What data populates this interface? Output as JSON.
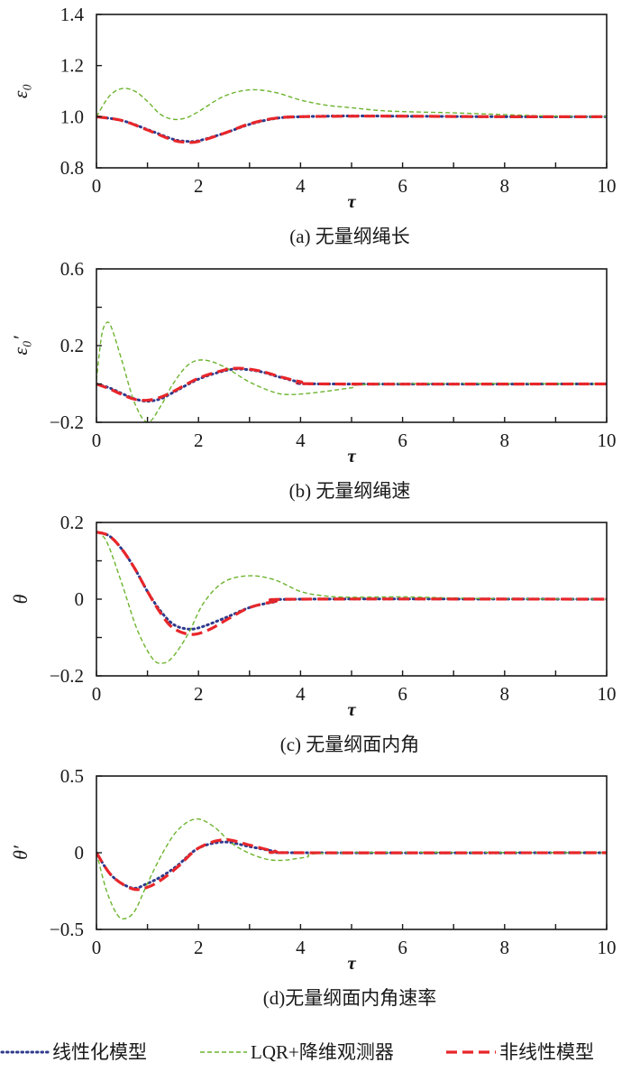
{
  "colors": {
    "linear": "#2e3a8c",
    "lqr": "#6cb42e",
    "nonlinear": "#e8262a",
    "axis": "#1a1a1a"
  },
  "legend": {
    "position": "bottom",
    "items": [
      {
        "key": "linear",
        "label": "线性化模型",
        "style": "dotted"
      },
      {
        "key": "lqr",
        "label": "LQR+降维观测器",
        "style": "dashed-thin"
      },
      {
        "key": "nonlinear",
        "label": "非线性模型",
        "style": "dashed-thick"
      }
    ]
  },
  "chart_data": [
    {
      "type": "line",
      "caption": "(a) 无量纲绳长",
      "xlabel": "τ",
      "ylabel": "ε₀",
      "xlim": [
        0,
        10
      ],
      "ylim": [
        0.8,
        1.4
      ],
      "xticks": [
        0,
        2,
        4,
        6,
        8,
        10
      ],
      "xminor": [
        1,
        3,
        5,
        7,
        9
      ],
      "yticks": [
        0.8,
        1.0,
        1.2,
        1.4
      ],
      "ytick_labels": [
        "0.8",
        "1.0",
        "1.2",
        "1.4"
      ],
      "yminor": [],
      "grid": false,
      "series": [
        {
          "key": "linear",
          "name": "线性化模型",
          "points": [
            [
              0,
              1
            ],
            [
              0.5,
              0.985
            ],
            [
              1,
              0.95
            ],
            [
              1.5,
              0.912
            ],
            [
              1.75,
              0.904
            ],
            [
              2,
              0.906
            ],
            [
              2.5,
              0.935
            ],
            [
              3,
              0.97
            ],
            [
              3.5,
              0.993
            ],
            [
              4,
              1.0
            ],
            [
              5,
              1.003
            ],
            [
              6,
              1.002
            ],
            [
              8,
              1.0
            ],
            [
              10,
              1.0
            ]
          ]
        },
        {
          "key": "lqr",
          "name": "LQR+降维观测器",
          "points": [
            [
              0,
              1
            ],
            [
              0.25,
              1.08
            ],
            [
              0.5,
              1.11
            ],
            [
              0.75,
              1.1
            ],
            [
              1,
              1.06
            ],
            [
              1.25,
              1.01
            ],
            [
              1.5,
              0.99
            ],
            [
              1.75,
              0.995
            ],
            [
              2,
              1.02
            ],
            [
              2.5,
              1.08
            ],
            [
              3,
              1.105
            ],
            [
              3.5,
              1.095
            ],
            [
              4,
              1.065
            ],
            [
              4.5,
              1.045
            ],
            [
              5,
              1.035
            ],
            [
              5.5,
              1.025
            ],
            [
              6,
              1.02
            ],
            [
              7,
              1.015
            ],
            [
              8,
              1.008
            ],
            [
              9,
              1.002
            ],
            [
              10,
              1.0
            ]
          ]
        },
        {
          "key": "nonlinear",
          "name": "非线性模型",
          "points": [
            [
              0,
              1
            ],
            [
              0.5,
              0.985
            ],
            [
              1,
              0.948
            ],
            [
              1.5,
              0.908
            ],
            [
              1.75,
              0.9
            ],
            [
              2,
              0.903
            ],
            [
              2.5,
              0.935
            ],
            [
              3,
              0.972
            ],
            [
              3.5,
              0.994
            ],
            [
              4,
              1.0
            ],
            [
              5,
              1.002
            ],
            [
              6,
              1.002
            ],
            [
              8,
              1.0
            ],
            [
              10,
              1.0
            ]
          ]
        }
      ]
    },
    {
      "type": "line",
      "caption": "(b) 无量纲绳速",
      "xlabel": "τ",
      "ylabel": "ε₀′",
      "xlim": [
        0,
        10
      ],
      "ylim": [
        -0.2,
        0.6
      ],
      "xticks": [
        0,
        2,
        4,
        6,
        8,
        10
      ],
      "xminor": [
        1,
        3,
        5,
        7,
        9
      ],
      "yticks": [
        -0.2,
        0.2,
        0.6
      ],
      "ytick_labels": [
        "−0.2",
        "0.2",
        "0.6"
      ],
      "yminor": [
        0,
        0.4
      ],
      "grid": false,
      "series": [
        {
          "key": "linear",
          "name": "线性化模型",
          "points": [
            [
              0,
              0
            ],
            [
              0.25,
              -0.02
            ],
            [
              0.5,
              -0.05
            ],
            [
              0.75,
              -0.078
            ],
            [
              1,
              -0.09
            ],
            [
              1.25,
              -0.078
            ],
            [
              1.5,
              -0.045
            ],
            [
              2,
              0.025
            ],
            [
              2.5,
              0.068
            ],
            [
              2.8,
              0.078
            ],
            [
              3.2,
              0.065
            ],
            [
              3.6,
              0.035
            ],
            [
              4,
              0.01
            ],
            [
              4.5,
              0
            ],
            [
              10,
              0
            ]
          ]
        },
        {
          "key": "lqr",
          "name": "LQR+降维观测器",
          "points": [
            [
              0,
              0.02
            ],
            [
              0.1,
              0.25
            ],
            [
              0.2,
              0.32
            ],
            [
              0.3,
              0.29
            ],
            [
              0.5,
              0.12
            ],
            [
              0.75,
              -0.1
            ],
            [
              1,
              -0.2
            ],
            [
              1.25,
              -0.12
            ],
            [
              1.5,
              0.0
            ],
            [
              1.8,
              0.1
            ],
            [
              2.1,
              0.125
            ],
            [
              2.5,
              0.09
            ],
            [
              3,
              0.01
            ],
            [
              3.5,
              -0.045
            ],
            [
              3.8,
              -0.055
            ],
            [
              4.3,
              -0.045
            ],
            [
              5,
              -0.02
            ],
            [
              5.6,
              0
            ],
            [
              10,
              0
            ]
          ]
        },
        {
          "key": "nonlinear",
          "name": "非线性模型",
          "points": [
            [
              0,
              0
            ],
            [
              0.25,
              -0.025
            ],
            [
              0.5,
              -0.055
            ],
            [
              0.75,
              -0.08
            ],
            [
              1,
              -0.085
            ],
            [
              1.25,
              -0.07
            ],
            [
              1.5,
              -0.04
            ],
            [
              2,
              0.03
            ],
            [
              2.5,
              0.072
            ],
            [
              2.8,
              0.082
            ],
            [
              3.2,
              0.068
            ],
            [
              3.6,
              0.038
            ],
            [
              4,
              0.012
            ],
            [
              4.5,
              0
            ],
            [
              10,
              0
            ]
          ]
        }
      ]
    },
    {
      "type": "line",
      "caption": "(c) 无量纲面内角",
      "xlabel": "τ",
      "ylabel": "θ",
      "xlim": [
        0,
        10
      ],
      "ylim": [
        -0.2,
        0.2
      ],
      "xticks": [
        0,
        2,
        4,
        6,
        8,
        10
      ],
      "xminor": [
        1,
        3,
        5,
        7,
        9
      ],
      "yticks": [
        -0.2,
        0,
        0.2
      ],
      "ytick_labels": [
        "−0.2",
        "0",
        "0.2"
      ],
      "yminor": [
        -0.1,
        0.1
      ],
      "grid": false,
      "series": [
        {
          "key": "linear",
          "name": "线性化模型",
          "points": [
            [
              0,
              0.175
            ],
            [
              0.25,
              0.165
            ],
            [
              0.5,
              0.13
            ],
            [
              0.75,
              0.08
            ],
            [
              1,
              0.02
            ],
            [
              1.25,
              -0.03
            ],
            [
              1.5,
              -0.065
            ],
            [
              1.75,
              -0.077
            ],
            [
              2,
              -0.075
            ],
            [
              2.5,
              -0.05
            ],
            [
              3,
              -0.022
            ],
            [
              3.5,
              -0.007
            ],
            [
              4,
              0
            ],
            [
              10,
              0
            ]
          ]
        },
        {
          "key": "lqr",
          "name": "LQR+降维观测器",
          "points": [
            [
              0,
              0.175
            ],
            [
              0.2,
              0.15
            ],
            [
              0.5,
              0.04
            ],
            [
              0.8,
              -0.08
            ],
            [
              1.1,
              -0.155
            ],
            [
              1.3,
              -0.167
            ],
            [
              1.5,
              -0.15
            ],
            [
              1.8,
              -0.09
            ],
            [
              2.1,
              -0.01
            ],
            [
              2.5,
              0.045
            ],
            [
              3,
              0.061
            ],
            [
              3.5,
              0.05
            ],
            [
              4,
              0.02
            ],
            [
              4.5,
              0.008
            ],
            [
              5,
              0.005
            ],
            [
              6,
              0.006
            ],
            [
              7,
              0.003
            ],
            [
              8,
              0.001
            ],
            [
              10,
              0
            ]
          ]
        },
        {
          "key": "nonlinear",
          "name": "非线性模型",
          "points": [
            [
              0,
              0.175
            ],
            [
              0.25,
              0.165
            ],
            [
              0.5,
              0.13
            ],
            [
              0.75,
              0.08
            ],
            [
              1,
              0.02
            ],
            [
              1.25,
              -0.035
            ],
            [
              1.5,
              -0.075
            ],
            [
              1.85,
              -0.092
            ],
            [
              2.2,
              -0.08
            ],
            [
              2.6,
              -0.05
            ],
            [
              3,
              -0.022
            ],
            [
              3.5,
              -0.006
            ],
            [
              4,
              0
            ],
            [
              10,
              0
            ]
          ]
        }
      ]
    },
    {
      "type": "line",
      "caption": "(d)无量纲面内角速率",
      "xlabel": "τ",
      "ylabel": "θ′",
      "xlim": [
        0,
        10
      ],
      "ylim": [
        -0.5,
        0.5
      ],
      "xticks": [
        0,
        2,
        4,
        6,
        8,
        10
      ],
      "xminor": [
        1,
        3,
        5,
        7,
        9
      ],
      "yticks": [
        -0.5,
        0,
        0.5
      ],
      "ytick_labels": [
        "−0.5",
        "0",
        "0.5"
      ],
      "yminor": [],
      "grid": false,
      "series": [
        {
          "key": "linear",
          "name": "线性化模型",
          "points": [
            [
              0,
              0
            ],
            [
              0.3,
              -0.15
            ],
            [
              0.7,
              -0.23
            ],
            [
              1,
              -0.2
            ],
            [
              1.3,
              -0.15
            ],
            [
              1.6,
              -0.08
            ],
            [
              2,
              0.03
            ],
            [
              2.5,
              0.07
            ],
            [
              3,
              0.04
            ],
            [
              3.5,
              0.01
            ],
            [
              4,
              0
            ],
            [
              10,
              0
            ]
          ]
        },
        {
          "key": "lqr",
          "name": "LQR+降维观测器",
          "points": [
            [
              0,
              0
            ],
            [
              0.2,
              -0.25
            ],
            [
              0.4,
              -0.4
            ],
            [
              0.55,
              -0.43
            ],
            [
              0.75,
              -0.38
            ],
            [
              1,
              -0.2
            ],
            [
              1.3,
              0.0
            ],
            [
              1.6,
              0.15
            ],
            [
              1.95,
              0.22
            ],
            [
              2.3,
              0.17
            ],
            [
              2.7,
              0.05
            ],
            [
              3.2,
              -0.03
            ],
            [
              3.6,
              -0.05
            ],
            [
              4.1,
              -0.03
            ],
            [
              4.8,
              0
            ],
            [
              10,
              0
            ]
          ]
        },
        {
          "key": "nonlinear",
          "name": "非线性模型",
          "points": [
            [
              0,
              0
            ],
            [
              0.3,
              -0.15
            ],
            [
              0.7,
              -0.235
            ],
            [
              1.0,
              -0.225
            ],
            [
              1.3,
              -0.17
            ],
            [
              1.6,
              -0.09
            ],
            [
              2,
              0.03
            ],
            [
              2.5,
              0.085
            ],
            [
              3,
              0.05
            ],
            [
              3.5,
              0.01
            ],
            [
              4,
              0
            ],
            [
              10,
              0
            ]
          ]
        }
      ]
    }
  ]
}
